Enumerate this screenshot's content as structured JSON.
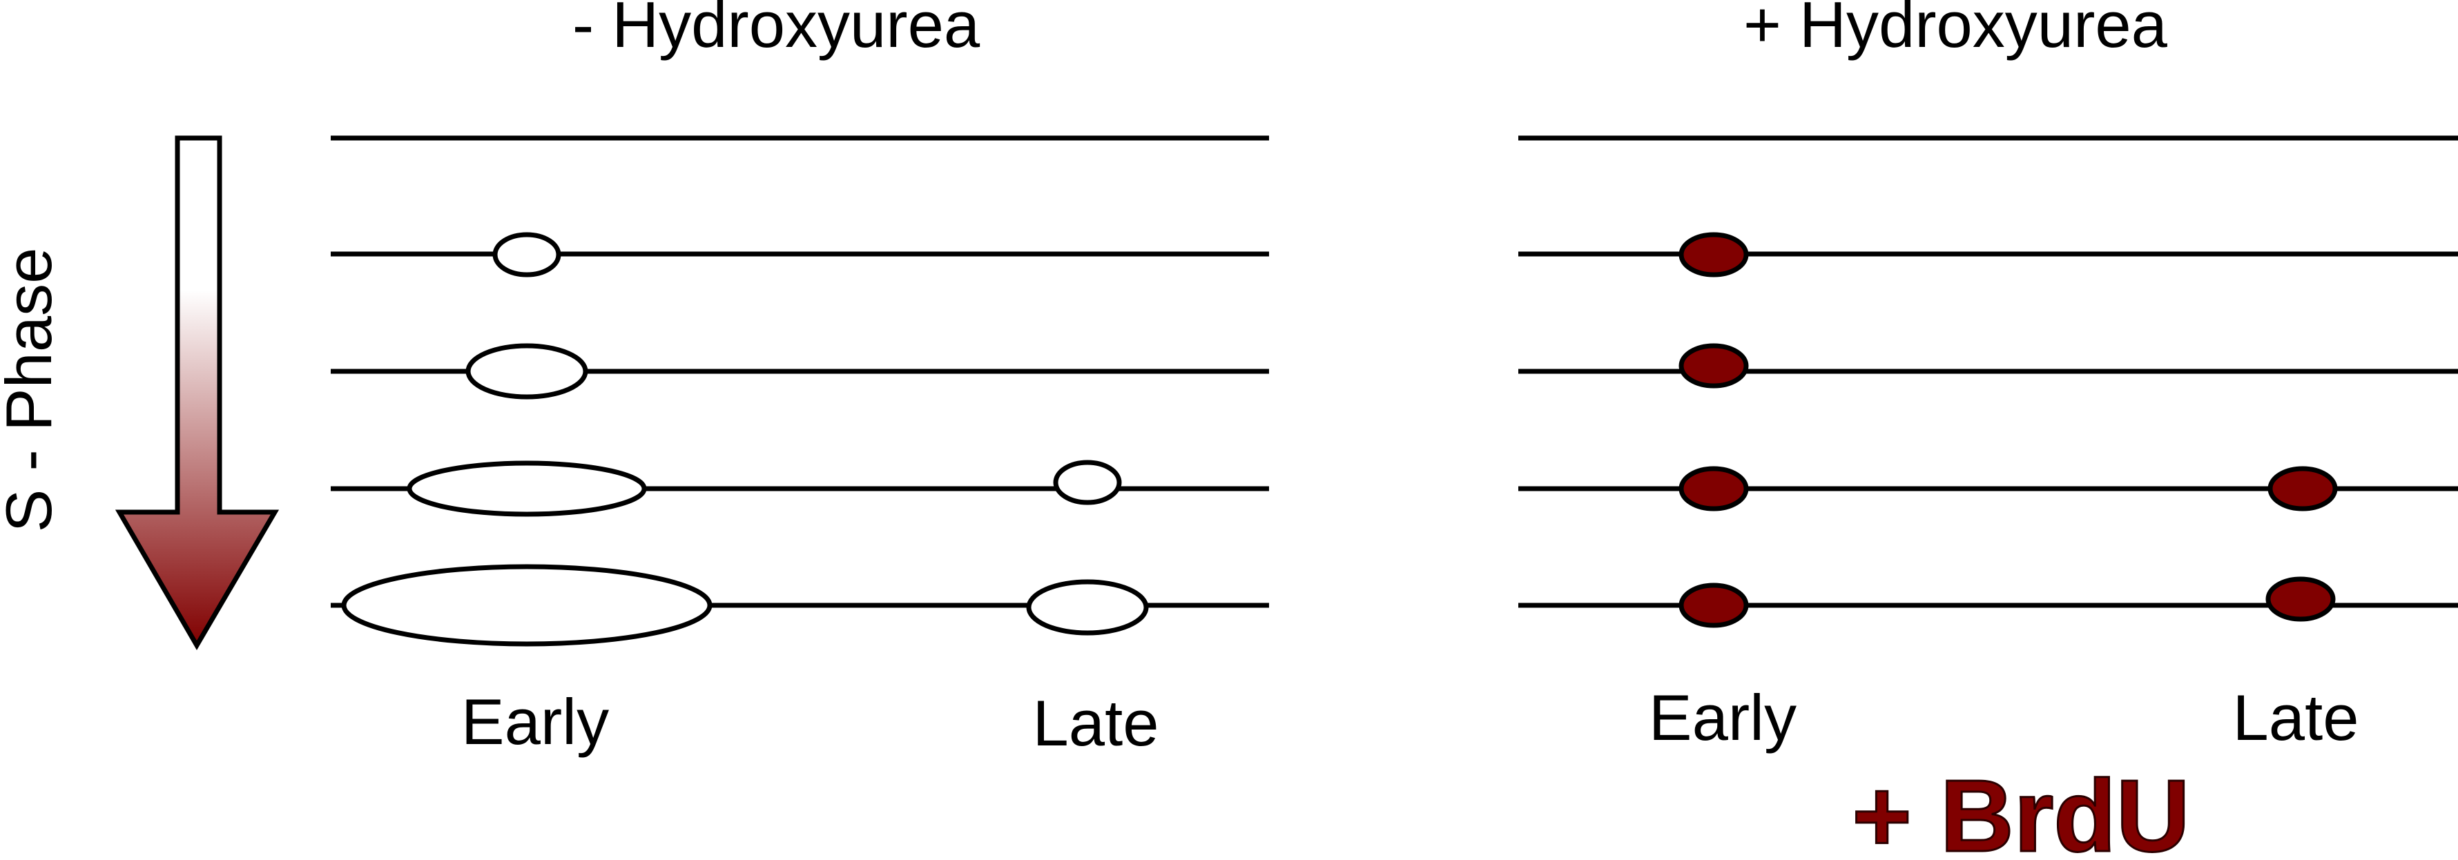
{
  "panels": [
    {
      "title": "- Hydroxyurea",
      "bubble_style": "open",
      "labels": {
        "early": "Early",
        "late": "Late"
      }
    },
    {
      "title": "+ Hydroxyurea",
      "bubble_style": "filled",
      "labels": {
        "early": "Early",
        "late": "Late"
      }
    }
  ],
  "s_phase": {
    "label": "S - Phase"
  },
  "brdu_label": "+ BrdU",
  "colors": {
    "line": "#000000",
    "filled_origin": "#800000",
    "arrow_top": "#ffffff",
    "arrow_bottom": "#800000",
    "brdu_text": "#800000"
  }
}
